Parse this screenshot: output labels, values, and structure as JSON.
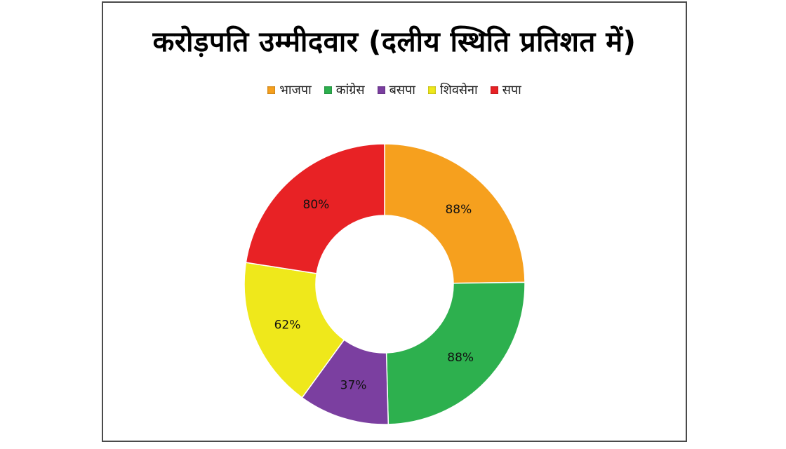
{
  "chart_data": {
    "type": "pie",
    "variant": "donut",
    "title": "करोड़पति उम्मीदवार (दलीय स्थिति प्रतिशत में)",
    "legend_position": "top",
    "categories": [
      "भाजपा",
      "कांग्रेस",
      "बसपा",
      "शिवसेना",
      "सपा"
    ],
    "values": [
      88,
      88,
      37,
      62,
      80
    ],
    "labels": [
      "88%",
      "88%",
      "37%",
      "62%",
      "80%"
    ],
    "colors": [
      "#F6A01E",
      "#2DB04E",
      "#7B3FA0",
      "#EFE81B",
      "#E82225"
    ]
  }
}
